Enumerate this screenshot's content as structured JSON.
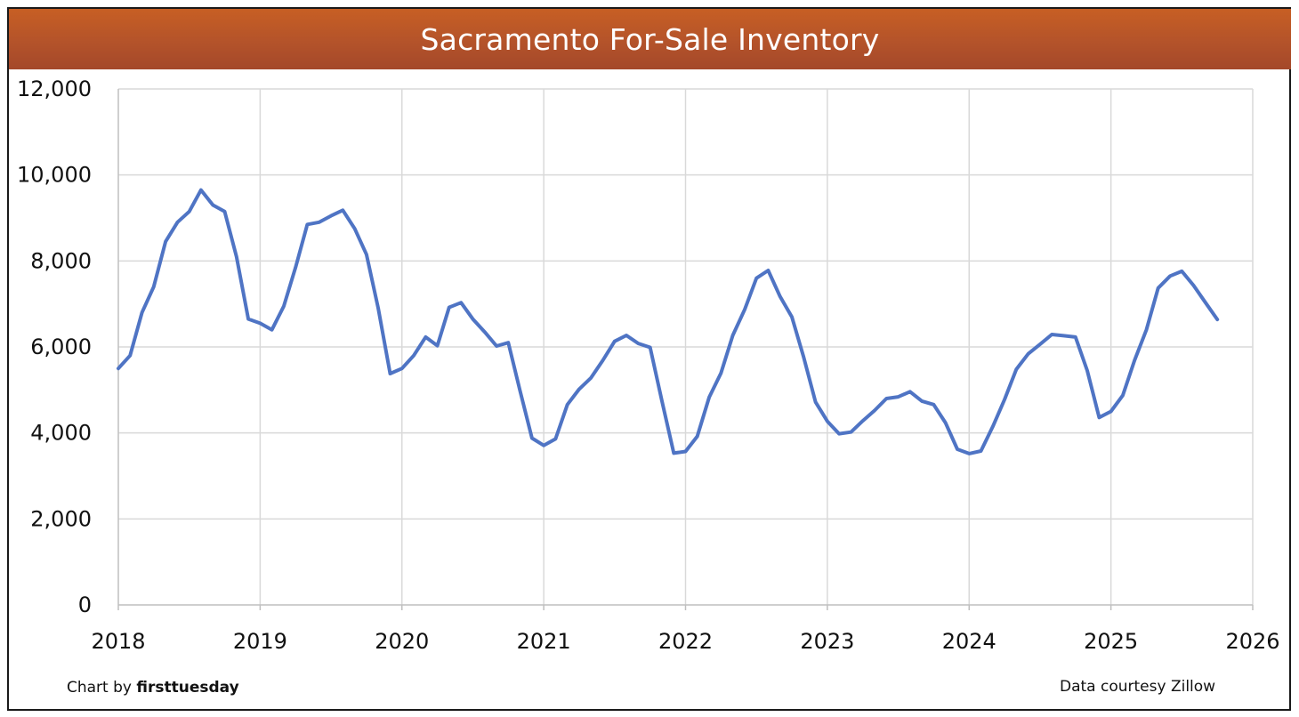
{
  "colors": {
    "line": "#4f74c4",
    "grid": "#d9d9d9",
    "title_bg": "#b4532a"
  },
  "credits": {
    "prefix": "Chart by",
    "brand": "firsttuesday",
    "source": "Data courtesy Zillow"
  },
  "chart_data": {
    "type": "line",
    "title": "Sacramento For-Sale Inventory",
    "xlabel": "",
    "ylabel": "",
    "xlim": [
      2018,
      2026
    ],
    "ylim": [
      0,
      12000
    ],
    "y_ticks": [
      0,
      2000,
      4000,
      6000,
      8000,
      10000,
      12000
    ],
    "y_tick_labels": [
      "0",
      "2,000",
      "4,000",
      "6,000",
      "8,000",
      "10,000",
      "12,000"
    ],
    "x_ticks": [
      2018,
      2019,
      2020,
      2021,
      2022,
      2023,
      2024,
      2025,
      2026
    ],
    "x_tick_labels": [
      "2018",
      "2019",
      "2020",
      "2021",
      "2022",
      "2023",
      "2024",
      "2025",
      "2026"
    ],
    "grid": true,
    "legend": "none",
    "series": [
      {
        "name": "Sacramento For-Sale Inventory",
        "x": [
          2018.0,
          2018.083,
          2018.167,
          2018.25,
          2018.333,
          2018.417,
          2018.5,
          2018.583,
          2018.667,
          2018.75,
          2018.833,
          2018.917,
          2019.0,
          2019.083,
          2019.167,
          2019.25,
          2019.333,
          2019.417,
          2019.5,
          2019.583,
          2019.667,
          2019.75,
          2019.833,
          2019.917,
          2020.0,
          2020.083,
          2020.167,
          2020.25,
          2020.333,
          2020.417,
          2020.5,
          2020.583,
          2020.667,
          2020.75,
          2020.833,
          2020.917,
          2021.0,
          2021.083,
          2021.167,
          2021.25,
          2021.333,
          2021.417,
          2021.5,
          2021.583,
          2021.667,
          2021.75,
          2021.833,
          2021.917,
          2022.0,
          2022.083,
          2022.167,
          2022.25,
          2022.333,
          2022.417,
          2022.5,
          2022.583,
          2022.667,
          2022.75,
          2022.833,
          2022.917,
          2023.0,
          2023.083,
          2023.167,
          2023.25,
          2023.333,
          2023.417,
          2023.5,
          2023.583,
          2023.667,
          2023.75,
          2023.833,
          2023.917,
          2024.0,
          2024.083,
          2024.167,
          2024.25,
          2024.333,
          2024.417,
          2024.5,
          2024.583,
          2024.667,
          2024.75,
          2024.833,
          2024.917,
          2025.0,
          2025.083,
          2025.167,
          2025.25,
          2025.333,
          2025.417,
          2025.5,
          2025.583,
          2025.667,
          2025.75
        ],
        "values": [
          5500,
          5800,
          6800,
          7400,
          8450,
          8900,
          9150,
          9650,
          9300,
          9150,
          8100,
          6650,
          6550,
          6400,
          6950,
          7850,
          8850,
          8900,
          9050,
          9180,
          8750,
          8150,
          6900,
          5380,
          5500,
          5800,
          6230,
          6030,
          6920,
          7030,
          6650,
          6350,
          6020,
          6100,
          4980,
          3880,
          3710,
          3860,
          4660,
          5020,
          5280,
          5690,
          6130,
          6270,
          6080,
          5990,
          4750,
          3530,
          3570,
          3920,
          4830,
          5390,
          6270,
          6870,
          7600,
          7780,
          7170,
          6700,
          5760,
          4720,
          4270,
          3980,
          4020,
          4280,
          4520,
          4800,
          4840,
          4960,
          4740,
          4660,
          4240,
          3620,
          3520,
          3580,
          4150,
          4780,
          5480,
          5840,
          6060,
          6290,
          6260,
          6230,
          5450,
          4360,
          4500,
          4870,
          5690,
          6400,
          7370,
          7650,
          7760,
          7430,
          7030,
          6640
        ]
      }
    ]
  }
}
